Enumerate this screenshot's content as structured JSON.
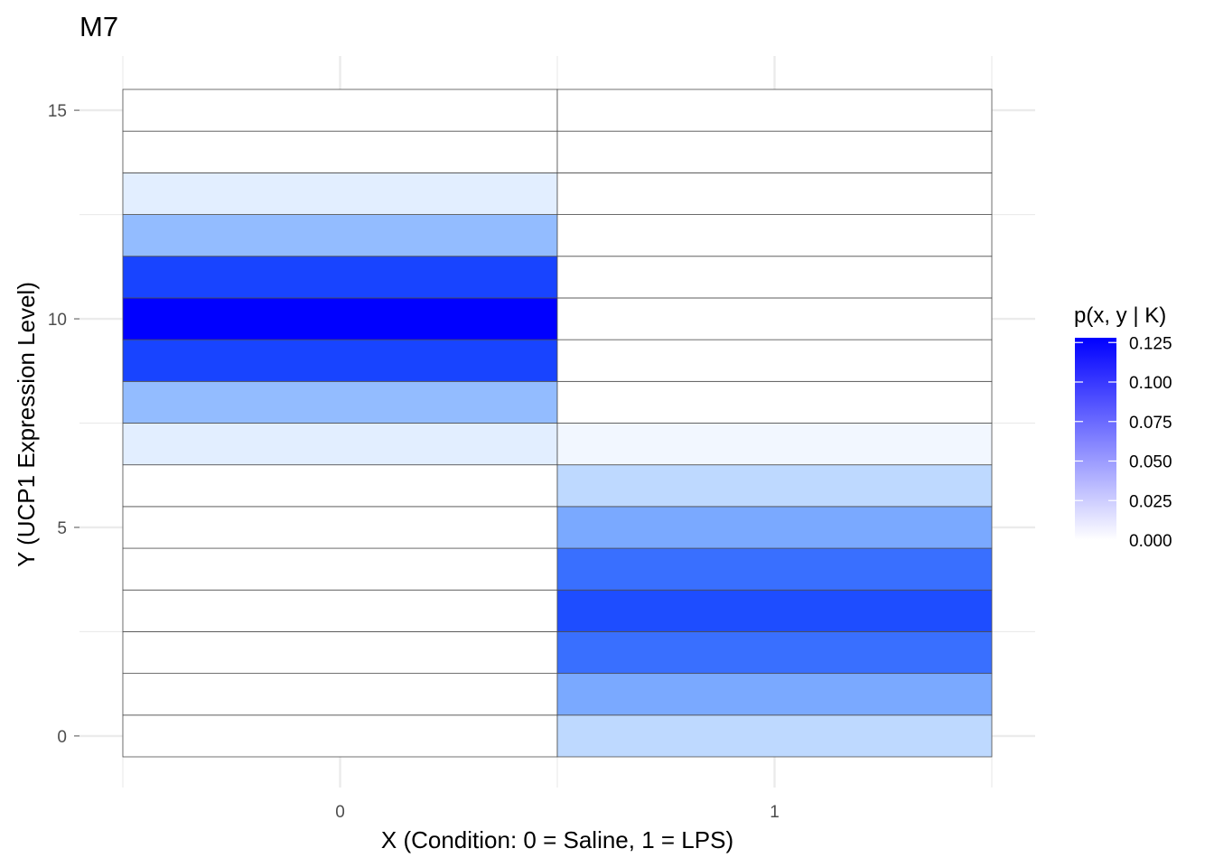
{
  "chart_data": {
    "type": "heatmap",
    "title": "M7",
    "xlabel": "X (Condition: 0 = Saline, 1 = LPS)",
    "ylabel": "Y (UCP1 Expression Level)",
    "x_categories": [
      "0",
      "1"
    ],
    "y_values": [
      0,
      1,
      2,
      3,
      4,
      5,
      6,
      7,
      8,
      9,
      10,
      11,
      12,
      13,
      14,
      15
    ],
    "y_ticks": [
      0,
      5,
      10,
      15
    ],
    "cells": [
      [
        0.0,
        0.0,
        0.0,
        0.0,
        0.0,
        0.0,
        0.0,
        0.011,
        0.043,
        0.106,
        0.128,
        0.106,
        0.043,
        0.011,
        0.0,
        0.0
      ],
      [
        0.025,
        0.054,
        0.086,
        0.102,
        0.086,
        0.054,
        0.025,
        0.005,
        0.0,
        0.0,
        0.0,
        0.0,
        0.0,
        0.0,
        0.0,
        0.0
      ]
    ],
    "legend": {
      "title": "p(x, y | K)",
      "ticks": [
        0.0,
        0.025,
        0.05,
        0.075,
        0.1,
        0.125
      ],
      "tick_labels": [
        "0.000",
        "0.025",
        "0.050",
        "0.075",
        "0.100",
        "0.125"
      ],
      "limits": [
        0.0,
        0.128
      ],
      "low_color": "#ffffff",
      "high_color": "#0000ff",
      "position": "right"
    },
    "grid": true
  }
}
